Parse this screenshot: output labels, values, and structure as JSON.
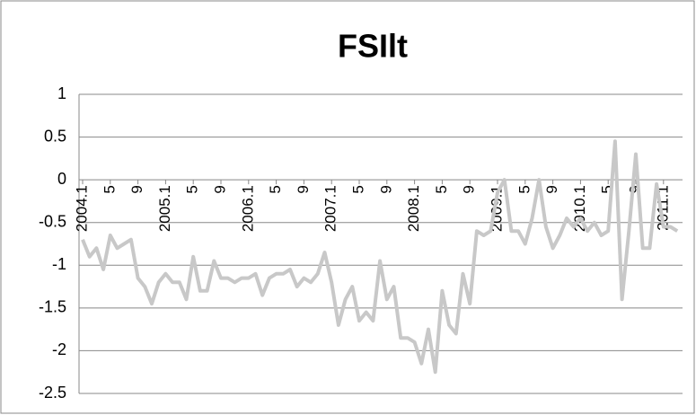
{
  "chart_data": {
    "type": "line",
    "title": "FSIlt",
    "categories": [
      "2004.1",
      null,
      null,
      null,
      "5",
      null,
      null,
      null,
      "9",
      null,
      null,
      null,
      "2005.1",
      null,
      null,
      null,
      "5",
      null,
      null,
      null,
      "9",
      null,
      null,
      null,
      "2006.1",
      null,
      null,
      null,
      "5",
      null,
      null,
      null,
      "9",
      null,
      null,
      null,
      "2007.1",
      null,
      null,
      null,
      "5",
      null,
      null,
      null,
      "9",
      null,
      null,
      null,
      "2008.1",
      null,
      null,
      null,
      "5",
      null,
      null,
      null,
      "9",
      null,
      null,
      null,
      "2009.1",
      null,
      null,
      null,
      "5",
      null,
      null,
      null,
      "9",
      null,
      null,
      null,
      "2010.1",
      null,
      null,
      null,
      "5",
      null,
      null,
      null,
      "9",
      null,
      null,
      null,
      "2011.1",
      null,
      null
    ],
    "values": [
      -0.7,
      -0.9,
      -0.8,
      -1.05,
      -0.65,
      -0.8,
      -0.75,
      -0.7,
      -1.15,
      -1.25,
      -1.45,
      -1.2,
      -1.1,
      -1.2,
      -1.2,
      -1.4,
      -0.9,
      -1.3,
      -1.3,
      -0.95,
      -1.15,
      -1.15,
      -1.2,
      -1.15,
      -1.15,
      -1.1,
      -1.35,
      -1.15,
      -1.1,
      -1.1,
      -1.05,
      -1.25,
      -1.15,
      -1.2,
      -1.1,
      -0.85,
      -1.2,
      -1.7,
      -1.4,
      -1.25,
      -1.65,
      -1.55,
      -1.65,
      -0.95,
      -1.4,
      -1.25,
      -1.85,
      -1.85,
      -1.9,
      -2.15,
      -1.75,
      -2.25,
      -1.3,
      -1.7,
      -1.8,
      -1.1,
      -1.45,
      -0.6,
      -0.65,
      -0.6,
      -0.15,
      0.0,
      -0.6,
      -0.6,
      -0.75,
      -0.45,
      0.0,
      -0.55,
      -0.8,
      -0.65,
      -0.45,
      -0.55,
      -0.45,
      -0.6,
      -0.5,
      -0.65,
      -0.6,
      0.45,
      -1.4,
      -0.6,
      0.3,
      -0.8,
      -0.8,
      -0.05,
      -0.55,
      -0.55,
      -0.6
    ],
    "color": "#c8c8c8",
    "ylim": [
      -2.5,
      1
    ],
    "yticks": [
      -2.5,
      -2,
      -1.5,
      -1,
      -0.5,
      0,
      0.5,
      1
    ],
    "grid": true
  }
}
